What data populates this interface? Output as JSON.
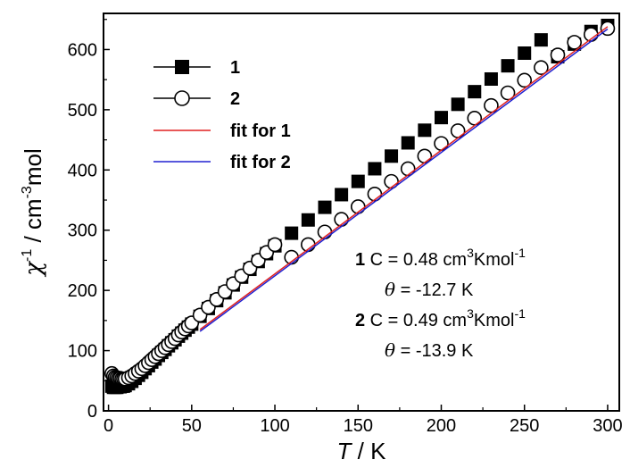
{
  "chart_data": {
    "type": "scatter",
    "title": "",
    "xlabel": {
      "symbol": "T",
      "unit": " / K"
    },
    "ylabel": {
      "symbol": "χ",
      "sup1": "-1",
      "mid": " / cm",
      "sup2": "-3",
      "end": "mol"
    },
    "xlim": [
      -3,
      307
    ],
    "ylim": [
      0,
      660
    ],
    "xticks": [
      0,
      50,
      100,
      150,
      200,
      250,
      300
    ],
    "yticks": [
      0,
      100,
      200,
      300,
      400,
      500,
      600
    ],
    "grid": false,
    "legend_position": "top-left",
    "series": [
      {
        "name": "1",
        "marker": "filled-square",
        "x": [
          2,
          3,
          4,
          5,
          6,
          7,
          8,
          9,
          10,
          12,
          14,
          16,
          18,
          20,
          22,
          24,
          26,
          28,
          30,
          32,
          34,
          36,
          38,
          40,
          42,
          44,
          46,
          48,
          50,
          55,
          60,
          65,
          70,
          75,
          80,
          85,
          90,
          95,
          100,
          110,
          120,
          130,
          140,
          150,
          160,
          170,
          180,
          190,
          200,
          210,
          220,
          230,
          240,
          250,
          260,
          270,
          280,
          290,
          300
        ],
        "y": [
          41,
          39,
          39,
          39,
          40,
          40,
          41,
          41,
          42,
          45,
          49,
          54,
          59,
          64,
          70,
          75,
          81,
          86,
          92,
          97,
          102,
          108,
          113,
          118,
          124,
          129,
          134,
          139,
          144,
          157,
          170,
          183,
          196,
          209,
          222,
          235,
          248,
          261,
          274,
          295,
          317,
          338,
          359,
          381,
          402,
          423,
          445,
          466,
          487,
          509,
          530,
          551,
          573,
          594,
          616,
          588,
          609,
          630,
          640
        ]
      },
      {
        "name": "2",
        "marker": "open-circle",
        "x": [
          2,
          3,
          4,
          5,
          6,
          7,
          8,
          9,
          10,
          12,
          14,
          16,
          18,
          20,
          22,
          24,
          26,
          28,
          30,
          32,
          34,
          36,
          38,
          40,
          42,
          44,
          46,
          48,
          50,
          55,
          60,
          65,
          70,
          75,
          80,
          85,
          90,
          95,
          100,
          110,
          120,
          130,
          140,
          150,
          160,
          170,
          180,
          190,
          200,
          210,
          220,
          230,
          240,
          250,
          260,
          270,
          280,
          290,
          300
        ],
        "y": [
          62,
          58,
          56,
          55,
          54,
          54,
          53,
          53,
          53,
          55,
          58,
          62,
          66,
          70,
          75,
          80,
          85,
          90,
          95,
          100,
          105,
          110,
          115,
          120,
          126,
          131,
          136,
          141,
          146,
          159,
          172,
          185,
          198,
          211,
          224,
          237,
          250,
          263,
          276,
          255,
          276,
          297,
          318,
          339,
          360,
          381,
          402,
          423,
          444,
          465,
          486,
          507,
          528,
          549,
          570,
          591,
          612,
          625,
          635
        ]
      },
      {
        "name": "fit for 1",
        "marker": "line",
        "color": "#e02020",
        "x": [
          55,
          300
        ],
        "y": [
          135,
          638
        ]
      },
      {
        "name": "fit for 2",
        "marker": "line",
        "color": "#2020d0",
        "x": [
          55,
          300
        ],
        "y": [
          132,
          634
        ]
      }
    ],
    "annotations": [
      {
        "bold": "1",
        "text": " C = 0.48 cm",
        "sup1": "3",
        "mid": "Kmol",
        "sup2": "-1"
      },
      {
        "sym": "θ",
        "text": " = -12.7 K"
      },
      {
        "bold": "2",
        "text": " C = 0.49 cm",
        "sup1": "3",
        "mid": "Kmol",
        "sup2": "-1"
      },
      {
        "sym": "θ",
        "text": " = -13.9 K"
      }
    ]
  }
}
